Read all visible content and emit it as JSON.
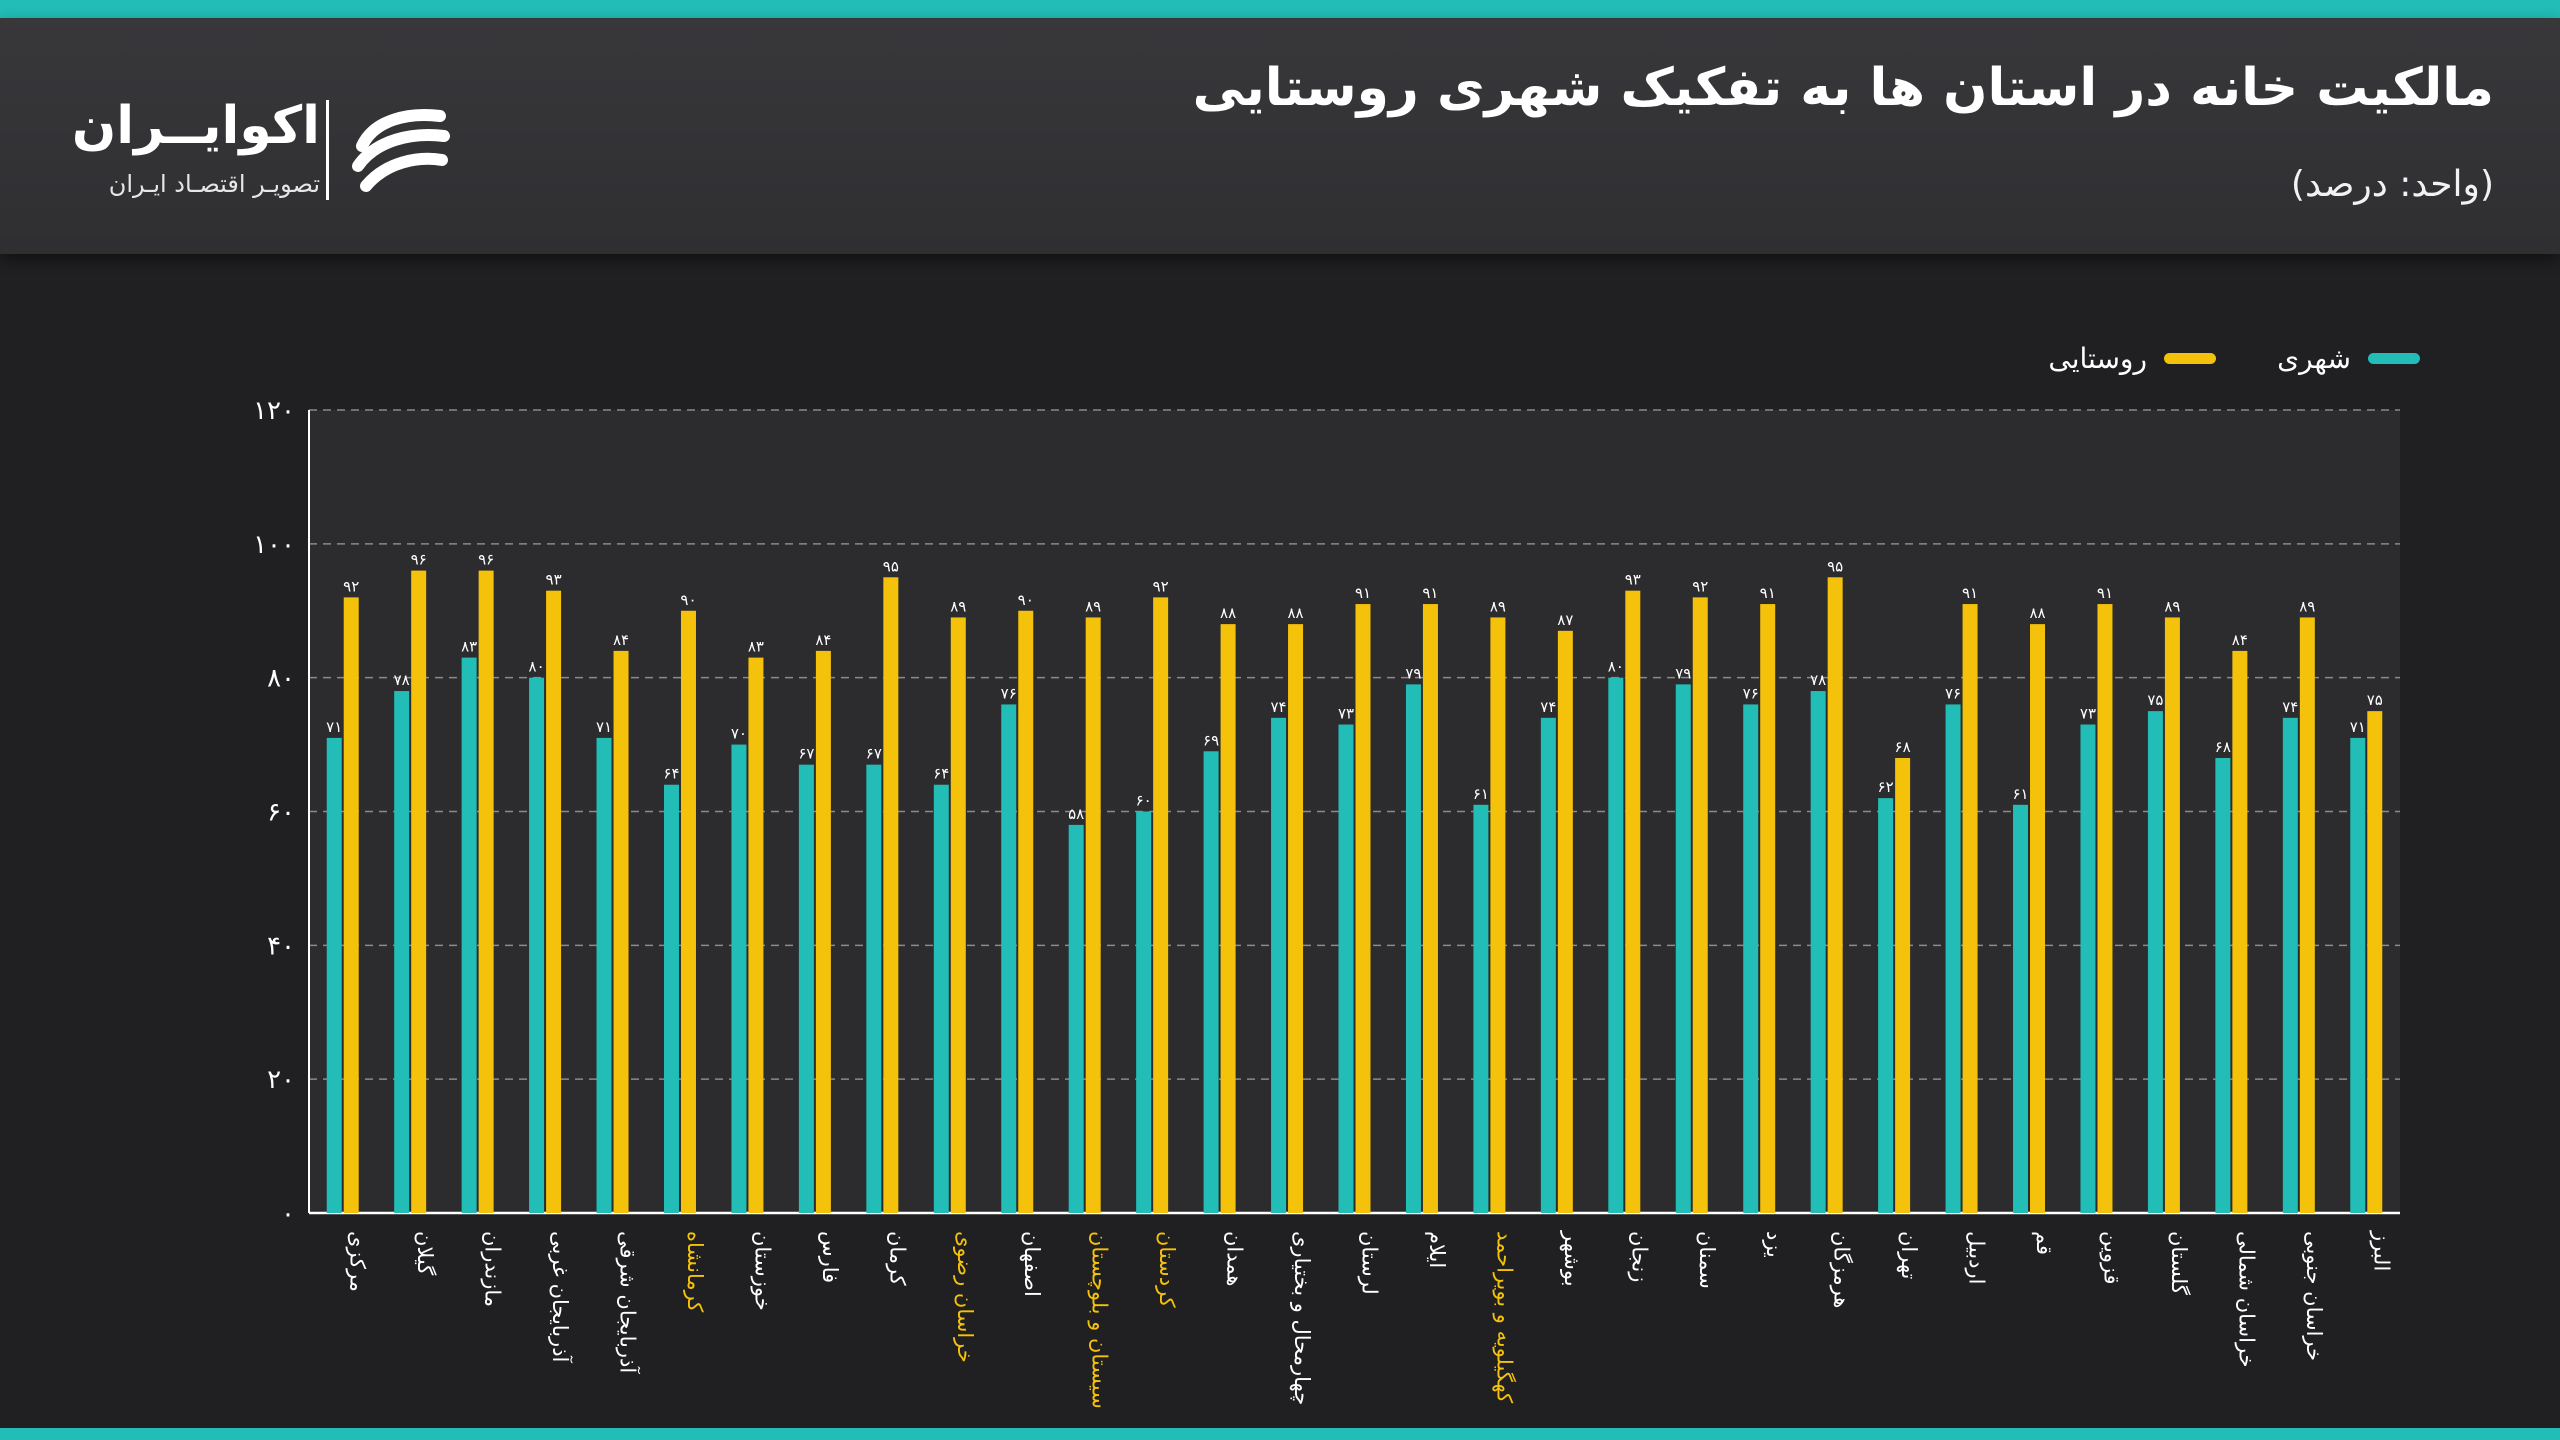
{
  "header": {
    "title": "مالکیت خانه در استان ها به تفکیک شهری روستایی",
    "unit": "(واحد: درصد)"
  },
  "logo": {
    "name": "اکوایــران",
    "tagline": "تصویـر اقتصـاد ایـران",
    "icon": "ecoiran-swoosh-icon"
  },
  "colors": {
    "urban": "#22bdb6",
    "rural": "#f4c10b",
    "highlight_label": "#f4c10b",
    "accent_stripe": "#22bdb6"
  },
  "legend": {
    "urban": "شهری",
    "rural": "روستایی"
  },
  "chart_data": {
    "type": "bar",
    "title": "مالکیت خانه در استان ها به تفکیک شهری روستایی",
    "ylabel": "",
    "xlabel": "",
    "ylim": [
      0,
      120
    ],
    "yticks": [
      "۰",
      "۲۰",
      "۴۰",
      "۶۰",
      "۸۰",
      "۱۰۰",
      "۱۲۰"
    ],
    "grid": true,
    "legend_position": "top-right",
    "categories": [
      "مرکزی",
      "گیلان",
      "مازندران",
      "آذربایجان غربی",
      "آذربایجان شرقی",
      "کرمانشاه",
      "خوزستان",
      "فارس",
      "کرمان",
      "خراسان رضوی",
      "اصفهان",
      "سیستان و بلوچستان",
      "کردستان",
      "همدان",
      "چهارمحال و بختیاری",
      "لرستان",
      "ایلام",
      "کهگیلویه و بویراحمد",
      "بوشهر",
      "زنجان",
      "سمنان",
      "یزد",
      "هرمزگان",
      "تهران",
      "اردبیل",
      "قم",
      "قزوین",
      "گلستان",
      "خراسان شمالی",
      "خراسان جنوبی",
      "البرز"
    ],
    "highlighted_categories": [
      "کرمانشاه",
      "خراسان رضوی",
      "سیستان و بلوچستان",
      "کردستان",
      "کهگیلویه و بویراحمد"
    ],
    "series": [
      {
        "name": "شهری",
        "values": [
          71,
          78,
          83,
          80,
          71,
          64,
          70,
          67,
          67,
          64,
          76,
          58,
          60,
          69,
          74,
          73,
          79,
          61,
          74,
          80,
          79,
          76,
          78,
          62,
          76,
          61,
          73,
          75,
          68,
          74,
          71
        ],
        "labels": [
          "۷۱",
          "۷۸",
          "۸۳",
          "۸۰",
          "۷۱",
          "۶۴",
          "۷۰",
          "۶۷",
          "۶۷",
          "۶۴",
          "۷۶",
          "۵۸",
          "۶۰",
          "۶۹",
          "۷۴",
          "۷۳",
          "۷۹",
          "۶۱",
          "۷۴",
          "۸۰",
          "۷۹",
          "۷۶",
          "۷۸",
          "۶۲",
          "۷۶",
          "۶۱",
          "۷۳",
          "۷۵",
          "۶۸",
          "۷۴",
          "۷۱"
        ]
      },
      {
        "name": "روستایی",
        "values": [
          92,
          96,
          96,
          93,
          84,
          90,
          83,
          84,
          95,
          89,
          90,
          89,
          92,
          88,
          88,
          91,
          91,
          89,
          87,
          93,
          92,
          91,
          95,
          68,
          91,
          88,
          91,
          89,
          84,
          89,
          75
        ],
        "labels": [
          "۹۲",
          "۹۶",
          "۹۶",
          "۹۳",
          "۸۴",
          "۹۰",
          "۸۳",
          "۸۴",
          "۹۵",
          "۸۹",
          "۹۰",
          "۸۹",
          "۹۲",
          "۸۸",
          "۸۸",
          "۹۱",
          "۹۱",
          "۸۹",
          "۸۷",
          "۹۳",
          "۹۲",
          "۹۱",
          "۹۵",
          "۶۸",
          "۹۱",
          "۸۸",
          "۹۱",
          "۸۹",
          "۸۴",
          "۸۹",
          "۷۵"
        ]
      }
    ]
  }
}
